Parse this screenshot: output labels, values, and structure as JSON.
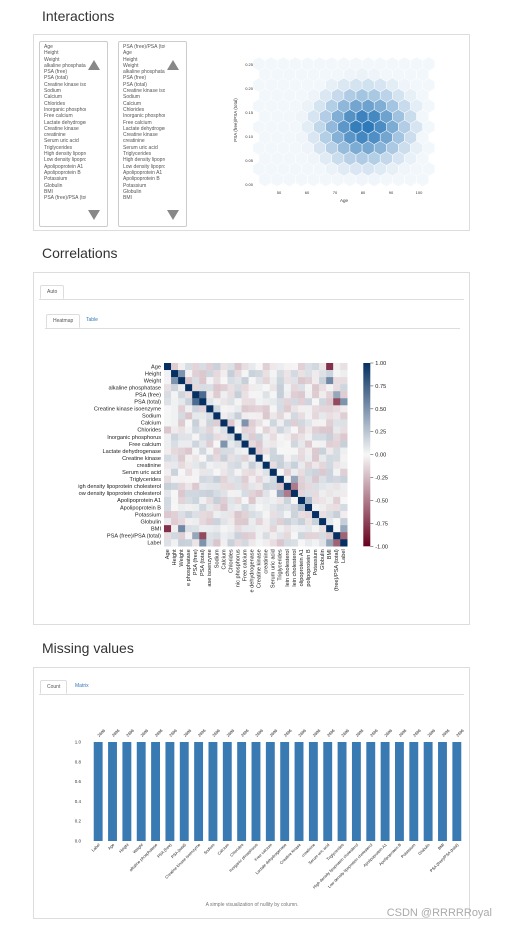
{
  "sections": {
    "interactions": "Interactions",
    "correlations": "Correlations",
    "missing": "Missing values"
  },
  "interactions": {
    "list_x": [
      "Age",
      "Height",
      "Weight",
      "alkaline phosphatase",
      "PSA (free)",
      "PSA (total)",
      "Creatine kinase isoenzyme",
      "Sodium",
      "Calcium",
      "Chlorides",
      "Inorganic phosphorus",
      "Free calcium",
      "Lactate dehydrogenase",
      "Creatine kinase",
      "creatinine",
      "Serum uric acid",
      "Triglycerides",
      "High density lipoprotein cholesterol",
      "Low density lipoprotein cholesterol",
      "Apolipoprotein A1",
      "Apolipoprotein B",
      "Potassium",
      "Globulin",
      "BMI",
      "PSA (free)/PSA (total)"
    ],
    "list_y": [
      "PSA (free)/PSA (total)",
      "Age",
      "Height",
      "Weight",
      "alkaline phosphatase",
      "PSA (free)",
      "PSA (total)",
      "Creatine kinase isoenzyme",
      "Sodium",
      "Calcium",
      "Chlorides",
      "Inorganic phosphorus",
      "Free calcium",
      "Lactate dehydrogenase",
      "Creatine kinase",
      "creatinine",
      "Serum uric acid",
      "Triglycerides",
      "High density lipoprotein cholesterol",
      "Low density lipoprotein cholesterol",
      "Apolipoprotein A1",
      "Apolipoprotein B",
      "Potassium",
      "Globulin",
      "BMI"
    ],
    "hexbin": {
      "xlabel": "Age",
      "ylabel": "PSA (free)/PSA (total)",
      "xticks": [
        "50",
        "60",
        "70",
        "80",
        "90",
        "100"
      ],
      "yticks": [
        "0.25",
        "0.20",
        "0.15",
        "0.10",
        "0.05",
        "0.00"
      ],
      "color": "#2171b5"
    }
  },
  "correlations": {
    "outer_tab": "Auto",
    "tabs": [
      "Heatmap",
      "Table"
    ],
    "variables": [
      "Age",
      "Height",
      "Weight",
      "alkaline phosphatase",
      "PSA (free)",
      "PSA (total)",
      "Creatine kinase isoenzyme",
      "Sodium",
      "Calcium",
      "Chlorides",
      "Inorganic phosphorus",
      "Free calcium",
      "Lactate dehydrogenase",
      "Creatine kinase",
      "creatinine",
      "Serum uric acid",
      "Triglycerides",
      "High density lipoprotein cholesterol",
      "Low density lipoprotein cholesterol",
      "Apolipoprotein A1",
      "Apolipoprotein B",
      "Potassium",
      "Globulin",
      "BMI",
      "PSA (free)/PSA (total)",
      "Label"
    ],
    "row_labels": [
      "Age",
      "Height",
      "Weight",
      "alkaline phosphatase",
      "PSA (free)",
      "PSA (total)",
      "Creatine kinase isoenzyme",
      "Sodium",
      "Calcium",
      "Chlorides",
      "Inorganic phosphorus",
      "Free calcium",
      "Lactate dehydrogenase",
      "Creatine kinase",
      "creatinine",
      "Serum uric acid",
      "Triglycerides",
      "igh density lipoprotein cholesterol",
      "ow density lipoprotein cholesterol",
      "Apolipoprotein A1",
      "Apolipoprotein B",
      "Potassium",
      "Globulin",
      "BMI",
      "PSA (free)/PSA (total)",
      "Label"
    ],
    "col_labels": [
      "Age",
      "Height",
      "Weight",
      "e phosphatase",
      "PSA (free)",
      "PSA (total)",
      "ase isoenzyme",
      "Sodium",
      "Calcium",
      "Chlorides",
      "nic phosphorus",
      "Free calcium",
      "e dehydrogenase",
      "Creatine kinase",
      "creatinine",
      "Serum uric acid",
      "Triglycerides",
      "lein cholesterol",
      "lein cholesterol",
      "olipoprotein A1",
      "polipoprotein B",
      "Potassium",
      "Globulin",
      "BMI",
      "(free)/PSA (total)",
      "Label"
    ],
    "colorbar_ticks": [
      "1.00",
      "0.75",
      "0.50",
      "0.25",
      "0.00",
      "-0.25",
      "-0.50",
      "-0.75",
      "-1.00"
    ]
  },
  "chart_data": {
    "type": "bar",
    "title": "",
    "caption": "A simple visualization of nullity by column.",
    "categories": [
      "Label",
      "Age",
      "Height",
      "Weight",
      "alkaline phosphatase",
      "PSA (free)",
      "PSA (total)",
      "Creatine kinase isoenzyme",
      "Sodium",
      "Calcium",
      "Chlorides",
      "Inorganic phosphorus",
      "Free calcium",
      "Lactate dehydrogenase",
      "Creatine kinase",
      "creatinine",
      "Serum uric acid",
      "Triglycerides",
      "High density lipoprotein cholesterol",
      "Low density lipoprotein cholesterol",
      "Apolipoprotein A1",
      "Apolipoprotein B",
      "Potassium",
      "Globulin",
      "BMI",
      "PSA (free)/PSA (total)"
    ],
    "values": [
      1.0,
      1.0,
      1.0,
      1.0,
      1.0,
      1.0,
      1.0,
      1.0,
      1.0,
      1.0,
      1.0,
      1.0,
      1.0,
      1.0,
      1.0,
      1.0,
      1.0,
      1.0,
      1.0,
      1.0,
      1.0,
      1.0,
      1.0,
      1.0,
      1.0,
      1.0
    ],
    "yticks": [
      "1.0",
      "0.8",
      "0.6",
      "0.4",
      "0.2",
      "0.0"
    ],
    "ylim": [
      0,
      1
    ],
    "bar_color": "#3a7ab3"
  },
  "missing": {
    "tabs": [
      "Count",
      "Matrix"
    ],
    "counts": [
      "2696",
      "2696",
      "2696",
      "2696",
      "2696",
      "2696",
      "2696",
      "2696",
      "2696",
      "2696",
      "2696",
      "2696",
      "2696",
      "2696",
      "2696",
      "2696",
      "2696",
      "2696",
      "2696",
      "2696",
      "2696",
      "2696",
      "2696",
      "2696",
      "2696",
      "2696"
    ]
  },
  "watermark": "CSDN @RRRRRoyal"
}
